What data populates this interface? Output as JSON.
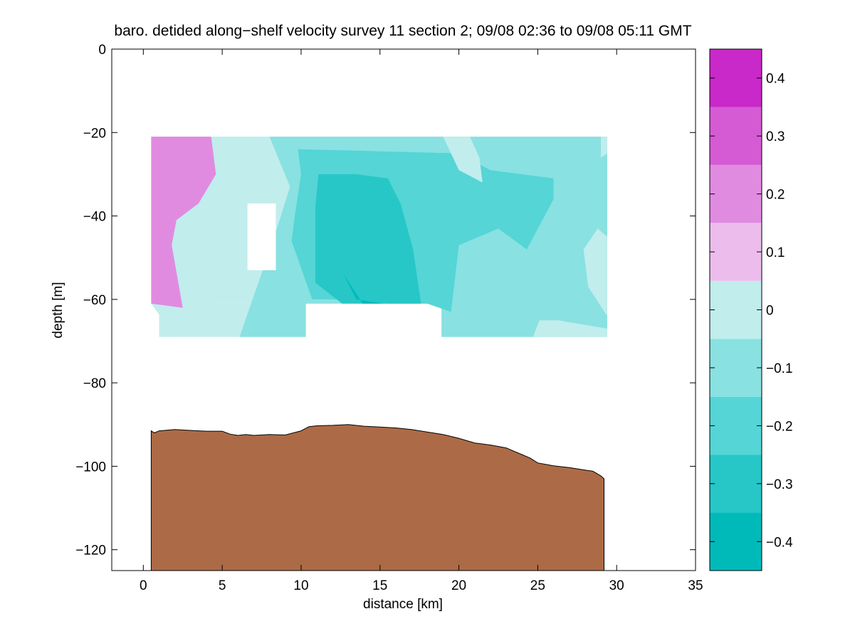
{
  "chart_data": {
    "type": "contour",
    "title": "baro. detided along−shelf velocity survey 11 section 2; 09/08 02:36 to 09/08 05:11 GMT",
    "xlabel": "distance [km]",
    "ylabel": "depth [m]",
    "xlim": [
      -2,
      35
    ],
    "ylim": [
      -125,
      0
    ],
    "xticks": [
      0,
      5,
      10,
      15,
      20,
      25,
      30,
      35
    ],
    "yticks": [
      0,
      -20,
      -40,
      -60,
      -80,
      -100,
      -120
    ],
    "xtick_labels": [
      "0",
      "5",
      "10",
      "15",
      "20",
      "25",
      "30",
      "35"
    ],
    "ytick_labels": [
      "0",
      "−20",
      "−40",
      "−60",
      "−80",
      "−100",
      "−120"
    ],
    "grid": false,
    "colorbar": {
      "levels": [
        -0.45,
        -0.4,
        -0.3,
        -0.2,
        -0.1,
        0,
        0.1,
        0.2,
        0.3,
        0.4,
        0.45
      ],
      "band_edges": [
        -0.45,
        -0.35,
        -0.25,
        -0.15,
        -0.05,
        0.05,
        0.15,
        0.25,
        0.35,
        0.45
      ],
      "band_colors": [
        "#00baba",
        "#27c7c7",
        "#55d5d5",
        "#89e1e1",
        "#c1eded",
        "#ecbdec",
        "#e08be0",
        "#d55bd5",
        "#c829c8",
        "#bb00bb"
      ],
      "tick_values": [
        0.4,
        0.3,
        0.2,
        0.1,
        0,
        -0.1,
        -0.2,
        -0.3,
        -0.4
      ],
      "tick_labels": [
        "0.4",
        "0.3",
        "0.2",
        "0.1",
        "0",
        "−0.1",
        "−0.2",
        "−0.3",
        "−0.4"
      ]
    },
    "data_region": {
      "upper": {
        "x": [
          0.5,
          29.4
        ],
        "depth": [
          -21,
          -61
        ]
      },
      "lower_left": {
        "x": [
          1.0,
          10.3
        ],
        "depth": [
          -61,
          -69
        ]
      },
      "lower_right": {
        "x": [
          18.9,
          29.4
        ],
        "depth": [
          -61,
          -69
        ]
      },
      "gap": {
        "x": [
          6.6,
          8.4
        ],
        "depth": [
          -37,
          -53
        ]
      }
    },
    "bathymetry": {
      "color": "#ac6b46",
      "x": [
        0.5,
        0.7,
        1.0,
        2.0,
        3.0,
        4.0,
        5.0,
        5.5,
        6.0,
        6.5,
        7.0,
        8.0,
        9.0,
        9.5,
        10.0,
        10.5,
        11.0,
        12.0,
        13.0,
        14.0,
        15.0,
        16.0,
        17.0,
        18.0,
        19.0,
        20.0,
        21.0,
        22.0,
        23.0,
        24.0,
        24.5,
        25.0,
        26.0,
        27.0,
        28.0,
        28.5,
        29.0,
        29.2
      ],
      "depth": [
        -91.5,
        -92,
        -91.5,
        -91.2,
        -91.4,
        -91.6,
        -91.6,
        -92.3,
        -92.6,
        -92.4,
        -92.6,
        -92.4,
        -92.5,
        -92.0,
        -91.5,
        -90.5,
        -90.3,
        -90.2,
        -90.0,
        -90.4,
        -90.6,
        -90.8,
        -91.2,
        -91.8,
        -92.4,
        -93.3,
        -94.4,
        -94.9,
        -95.6,
        -97.2,
        -98.0,
        -99.2,
        -99.9,
        -100.3,
        -100.9,
        -101.2,
        -102.3,
        -103.0
      ]
    },
    "velocity_regions": [
      {
        "value": 0.0,
        "x": [
          0.5,
          6.5,
          8.0,
          9.3,
          8.3,
          6.1,
          4.0,
          2.0,
          0.5
        ],
        "depth": [
          -21,
          -21,
          -21,
          -33,
          -45,
          -51,
          -62,
          -69,
          -61
        ]
      },
      {
        "value": 0.2,
        "x": [
          0.5,
          4.3,
          4.6,
          3.5,
          2.1,
          1.8,
          2.5,
          0.5
        ],
        "depth": [
          -21,
          -21,
          -30,
          -37,
          -41,
          -47,
          -62,
          -61
        ]
      },
      {
        "value": -0.1,
        "x": [
          8.0,
          29.4,
          29.4,
          18.9,
          18.9,
          10.3,
          10.3,
          6.1,
          8.3,
          9.3
        ],
        "depth": [
          -21,
          -21,
          -69,
          -69,
          -61,
          -61,
          -69,
          -69,
          -45,
          -33
        ]
      },
      {
        "value": -0.2,
        "x": [
          9.8,
          20.0,
          22.0,
          26.0,
          26.0,
          24.3,
          22.5,
          20.0,
          19.5,
          18.0,
          15.5,
          12.0,
          10.7,
          9.4,
          9.6,
          10.0
        ],
        "depth": [
          -24,
          -25,
          -29,
          -31,
          -36,
          -48,
          -43,
          -47,
          -63,
          -61,
          -61,
          -60,
          -60,
          -46,
          -40,
          -30
        ]
      },
      {
        "value": -0.3,
        "x": [
          11.1,
          13.5,
          15.5,
          16.3,
          17.1,
          17.6,
          15.9,
          14.5,
          12.6,
          10.9,
          10.9
        ],
        "depth": [
          -30,
          -30,
          -31,
          -37,
          -48,
          -61,
          -61,
          -61,
          -61,
          -56,
          -38
        ]
      },
      {
        "value": -0.4,
        "x": [
          12.7,
          13.5,
          15.2,
          13.9
        ],
        "depth": [
          -54,
          -60,
          -61,
          -61
        ]
      },
      {
        "value": 0.0,
        "x": [
          27.9,
          28.8,
          29.4,
          29.4,
          28.2
        ],
        "depth": [
          -48,
          -43,
          -45,
          -64,
          -57
        ]
      },
      {
        "value": 0.0,
        "x": [
          25.1,
          26.3,
          29.4,
          29.4,
          24.7
        ],
        "depth": [
          -65,
          -65,
          -67,
          -69,
          -69
        ]
      },
      {
        "value": 0.0,
        "x": [
          19.0,
          20.7,
          21.3,
          21.5,
          20.0
        ],
        "depth": [
          -21,
          -21,
          -26,
          -32,
          -29
        ]
      },
      {
        "value": 0.0,
        "x": [
          29.0,
          29.4,
          29.4,
          29.0
        ],
        "depth": [
          -21,
          -21,
          -25,
          -26
        ]
      }
    ]
  }
}
